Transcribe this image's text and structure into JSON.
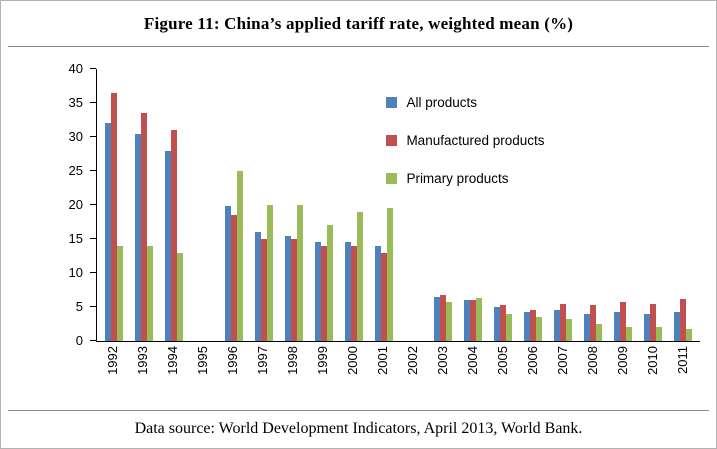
{
  "title": "Figure 11: China’s applied tariff rate, weighted mean (%)",
  "footer": "Data source: World Development Indicators, April 2013, World Bank.",
  "chart_data": {
    "type": "bar",
    "title": "Figure 11: China’s applied tariff rate, weighted mean (%)",
    "xlabel": "",
    "ylabel": "",
    "ylim": [
      0,
      40
    ],
    "ytick_step": 5,
    "grid": false,
    "legend_position": "upper-right-inside",
    "categories": [
      "1992",
      "1993",
      "1994",
      "1995",
      "1996",
      "1997",
      "1998",
      "1999",
      "2000",
      "2001",
      "2002",
      "2003",
      "2004",
      "2005",
      "2006",
      "2007",
      "2008",
      "2009",
      "2010",
      "2011"
    ],
    "series": [
      {
        "key": "all",
        "name": "All products",
        "color": "#4F81BD",
        "values": [
          32,
          30.5,
          28,
          null,
          19.8,
          16,
          15.5,
          14.5,
          14.5,
          14,
          null,
          6.5,
          6,
          5,
          4.3,
          4.5,
          4,
          4.2,
          4,
          4.2
        ]
      },
      {
        "key": "manufactured",
        "name": "Manufactured products",
        "color": "#C0504D",
        "values": [
          36.5,
          33.5,
          31,
          null,
          18.5,
          15,
          15,
          14,
          14,
          13,
          null,
          6.8,
          6,
          5.3,
          4.5,
          5.5,
          5.3,
          5.8,
          5.5,
          6.2
        ]
      },
      {
        "key": "primary",
        "name": "Primary products",
        "color": "#9BBB59",
        "values": [
          14,
          14,
          13,
          null,
          25,
          20,
          20,
          17,
          19,
          19.5,
          null,
          5.7,
          6.3,
          4,
          3.5,
          3.3,
          2.5,
          2,
          2,
          1.7
        ]
      }
    ]
  }
}
